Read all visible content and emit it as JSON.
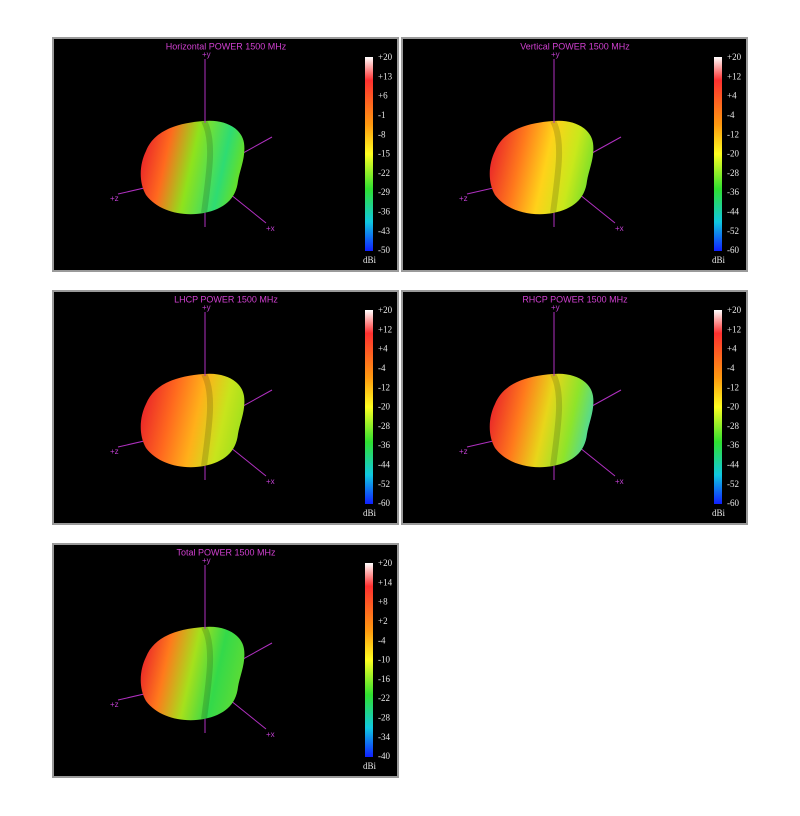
{
  "panels": [
    {
      "title": "Horizontal POWER 1500  MHz",
      "axes": {
        "y": "+y",
        "z": "+z",
        "x": "+x"
      },
      "scale": [
        "+20",
        "+13",
        "+6",
        "-1",
        "-8",
        "-15",
        "-22",
        "-29",
        "-36",
        "-43",
        "-50"
      ],
      "unit": "dBi"
    },
    {
      "title": "Vertical POWER 1500  MHz",
      "axes": {
        "y": "+y",
        "z": "+z",
        "x": "+x"
      },
      "scale": [
        "+20",
        "+12",
        "+4",
        "-4",
        "-12",
        "-20",
        "-28",
        "-36",
        "-44",
        "-52",
        "-60"
      ],
      "unit": "dBi"
    },
    {
      "title": "LHCP POWER 1500  MHz",
      "axes": {
        "y": "+y",
        "z": "+z",
        "x": "+x"
      },
      "scale": [
        "+20",
        "+12",
        "+4",
        "-4",
        "-12",
        "-20",
        "-28",
        "-36",
        "-44",
        "-52",
        "-60"
      ],
      "unit": "dBi"
    },
    {
      "title": "RHCP POWER 1500  MHz",
      "axes": {
        "y": "+y",
        "z": "+z",
        "x": "+x"
      },
      "scale": [
        "+20",
        "+12",
        "+4",
        "-4",
        "-12",
        "-20",
        "-28",
        "-36",
        "-44",
        "-52",
        "-60"
      ],
      "unit": "dBi"
    },
    {
      "title": "Total POWER 1500  MHz",
      "axes": {
        "y": "+y",
        "z": "+z",
        "x": "+x"
      },
      "scale": [
        "+20",
        "+14",
        "+8",
        "+2",
        "-4",
        "-10",
        "-16",
        "-22",
        "-28",
        "-34",
        "-40"
      ],
      "unit": "dBi"
    }
  ]
}
